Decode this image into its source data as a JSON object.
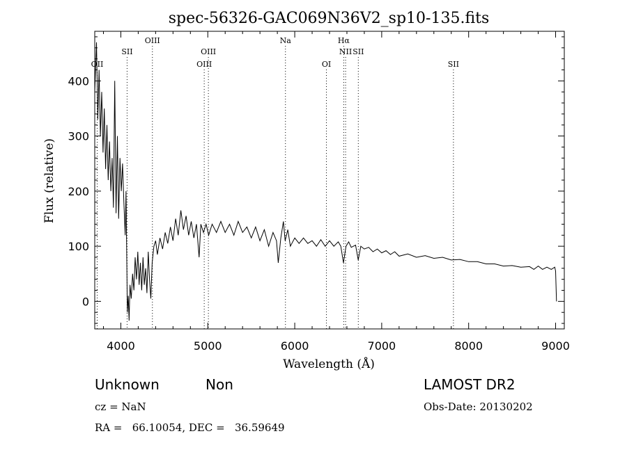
{
  "chart_data": {
    "type": "line",
    "title": "spec-56326-GAC069N36V2_sp10-135.fits",
    "xlabel": "Wavelength (Å)",
    "ylabel": "Flux (relative)",
    "xlim": [
      3700,
      9100
    ],
    "ylim": [
      -50,
      490
    ],
    "x_ticks": [
      4000,
      5000,
      6000,
      7000,
      8000,
      9000
    ],
    "x_tick_labels": [
      "4000",
      "5000",
      "6000",
      "7000",
      "8000",
      "9000"
    ],
    "y_ticks": [
      0,
      100,
      200,
      300,
      400
    ],
    "y_tick_labels": [
      "0",
      "100",
      "200",
      "300",
      "400"
    ],
    "grid": false,
    "series": [
      {
        "color": "#000000",
        "points": [
          [
            3700,
            380
          ],
          [
            3720,
            470
          ],
          [
            3735,
            330
          ],
          [
            3750,
            420
          ],
          [
            3765,
            300
          ],
          [
            3780,
            380
          ],
          [
            3795,
            270
          ],
          [
            3810,
            350
          ],
          [
            3825,
            240
          ],
          [
            3840,
            320
          ],
          [
            3855,
            220
          ],
          [
            3870,
            290
          ],
          [
            3885,
            200
          ],
          [
            3900,
            260
          ],
          [
            3915,
            170
          ],
          [
            3930,
            400
          ],
          [
            3945,
            160
          ],
          [
            3960,
            300
          ],
          [
            3975,
            150
          ],
          [
            3990,
            260
          ],
          [
            4005,
            200
          ],
          [
            4020,
            250
          ],
          [
            4035,
            180
          ],
          [
            4050,
            120
          ],
          [
            4060,
            200
          ],
          [
            4075,
            -20
          ],
          [
            4085,
            10
          ],
          [
            4095,
            -35
          ],
          [
            4105,
            30
          ],
          [
            4120,
            5
          ],
          [
            4135,
            50
          ],
          [
            4150,
            20
          ],
          [
            4165,
            80
          ],
          [
            4180,
            40
          ],
          [
            4195,
            90
          ],
          [
            4210,
            30
          ],
          [
            4225,
            70
          ],
          [
            4240,
            20
          ],
          [
            4255,
            80
          ],
          [
            4270,
            30
          ],
          [
            4285,
            60
          ],
          [
            4300,
            15
          ],
          [
            4315,
            90
          ],
          [
            4330,
            40
          ],
          [
            4345,
            5
          ],
          [
            4360,
            70
          ],
          [
            4380,
            100
          ],
          [
            4400,
            110
          ],
          [
            4420,
            85
          ],
          [
            4450,
            115
          ],
          [
            4480,
            95
          ],
          [
            4510,
            125
          ],
          [
            4540,
            105
          ],
          [
            4570,
            135
          ],
          [
            4600,
            110
          ],
          [
            4630,
            150
          ],
          [
            4660,
            120
          ],
          [
            4690,
            165
          ],
          [
            4720,
            130
          ],
          [
            4750,
            155
          ],
          [
            4780,
            120
          ],
          [
            4810,
            145
          ],
          [
            4840,
            115
          ],
          [
            4870,
            140
          ],
          [
            4900,
            80
          ],
          [
            4920,
            140
          ],
          [
            4950,
            125
          ],
          [
            4980,
            140
          ],
          [
            5010,
            120
          ],
          [
            5050,
            140
          ],
          [
            5100,
            125
          ],
          [
            5150,
            145
          ],
          [
            5200,
            125
          ],
          [
            5250,
            140
          ],
          [
            5300,
            120
          ],
          [
            5350,
            145
          ],
          [
            5400,
            125
          ],
          [
            5450,
            135
          ],
          [
            5500,
            115
          ],
          [
            5550,
            135
          ],
          [
            5600,
            110
          ],
          [
            5650,
            130
          ],
          [
            5700,
            100
          ],
          [
            5750,
            125
          ],
          [
            5790,
            110
          ],
          [
            5810,
            70
          ],
          [
            5840,
            115
          ],
          [
            5870,
            145
          ],
          [
            5890,
            110
          ],
          [
            5920,
            130
          ],
          [
            5950,
            100
          ],
          [
            6000,
            115
          ],
          [
            6050,
            105
          ],
          [
            6100,
            115
          ],
          [
            6150,
            105
          ],
          [
            6200,
            110
          ],
          [
            6250,
            100
          ],
          [
            6300,
            112
          ],
          [
            6350,
            100
          ],
          [
            6400,
            110
          ],
          [
            6450,
            100
          ],
          [
            6500,
            108
          ],
          [
            6530,
            100
          ],
          [
            6560,
            70
          ],
          [
            6590,
            100
          ],
          [
            6620,
            108
          ],
          [
            6650,
            98
          ],
          [
            6700,
            102
          ],
          [
            6730,
            75
          ],
          [
            6760,
            100
          ],
          [
            6800,
            95
          ],
          [
            6850,
            98
          ],
          [
            6900,
            90
          ],
          [
            6950,
            95
          ],
          [
            7000,
            88
          ],
          [
            7050,
            92
          ],
          [
            7100,
            85
          ],
          [
            7150,
            90
          ],
          [
            7200,
            82
          ],
          [
            7300,
            86
          ],
          [
            7400,
            80
          ],
          [
            7500,
            83
          ],
          [
            7600,
            78
          ],
          [
            7700,
            80
          ],
          [
            7800,
            75
          ],
          [
            7900,
            76
          ],
          [
            8000,
            72
          ],
          [
            8100,
            72
          ],
          [
            8200,
            68
          ],
          [
            8300,
            68
          ],
          [
            8400,
            64
          ],
          [
            8500,
            65
          ],
          [
            8600,
            62
          ],
          [
            8700,
            63
          ],
          [
            8750,
            58
          ],
          [
            8800,
            64
          ],
          [
            8850,
            58
          ],
          [
            8900,
            62
          ],
          [
            8950,
            58
          ],
          [
            8990,
            62
          ],
          [
            9000,
            55
          ],
          [
            9010,
            0
          ]
        ]
      }
    ],
    "lines": [
      {
        "x": 3728,
        "label": "OII",
        "row": 3
      },
      {
        "x": 4072,
        "label": "SII",
        "row": 2
      },
      {
        "x": 4363,
        "label": "OIII",
        "row": 1
      },
      {
        "x": 4959,
        "label": "OIII",
        "row": 3
      },
      {
        "x": 5007,
        "label": "OIII",
        "row": 2
      },
      {
        "x": 5893,
        "label": "Na",
        "row": 1
      },
      {
        "x": 6364,
        "label": "OI",
        "row": 3
      },
      {
        "x": 6563,
        "label": "Hα",
        "row": 1
      },
      {
        "x": 6585,
        "label": "NII",
        "row": 2
      },
      {
        "x": 6731,
        "label": "SII",
        "row": 2
      },
      {
        "x": 7825,
        "label": "SII",
        "row": 3
      }
    ]
  },
  "footer": {
    "class_label": "Unknown",
    "subclass_label": "Non",
    "cz_text": "cz = NaN",
    "coords_text": "RA =   66.10054, DEC =   36.59649",
    "survey_text": "LAMOST DR2",
    "obs_date_text": "Obs-Date: 20130202"
  }
}
